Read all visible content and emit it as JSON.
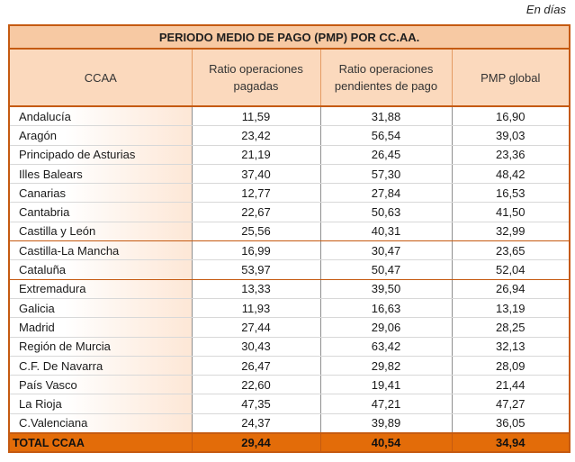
{
  "unit_note": "En días",
  "title": "PERIODO MEDIO DE PAGO (PMP) POR CC.AA.",
  "columns": {
    "ccaa": "CCAA",
    "ratio_pagadas": "Ratio operaciones pagadas",
    "ratio_pendientes": "Ratio operaciones pendientes de pago",
    "pmp_global": "PMP global"
  },
  "rows": [
    {
      "name": "Andalucía",
      "pagadas": "11,59",
      "pendientes": "31,88",
      "pmp": "16,90"
    },
    {
      "name": "Aragón",
      "pagadas": "23,42",
      "pendientes": "56,54",
      "pmp": "39,03"
    },
    {
      "name": "Principado de Asturias",
      "pagadas": "21,19",
      "pendientes": "26,45",
      "pmp": "23,36"
    },
    {
      "name": "Illes Balears",
      "pagadas": "37,40",
      "pendientes": "57,30",
      "pmp": "48,42"
    },
    {
      "name": "Canarias",
      "pagadas": "12,77",
      "pendientes": "27,84",
      "pmp": "16,53"
    },
    {
      "name": "Cantabria",
      "pagadas": "22,67",
      "pendientes": "50,63",
      "pmp": "41,50"
    },
    {
      "name": "Castilla y León",
      "pagadas": "25,56",
      "pendientes": "40,31",
      "pmp": "32,99"
    },
    {
      "name": "Castilla-La Mancha",
      "pagadas": "16,99",
      "pendientes": "30,47",
      "pmp": "23,65"
    },
    {
      "name": "Cataluña",
      "pagadas": "53,97",
      "pendientes": "50,47",
      "pmp": "52,04"
    },
    {
      "name": "Extremadura",
      "pagadas": "13,33",
      "pendientes": "39,50",
      "pmp": "26,94"
    },
    {
      "name": "Galicia",
      "pagadas": "11,93",
      "pendientes": "16,63",
      "pmp": "13,19"
    },
    {
      "name": "Madrid",
      "pagadas": "27,44",
      "pendientes": "29,06",
      "pmp": "28,25"
    },
    {
      "name": "Región de Murcia",
      "pagadas": "30,43",
      "pendientes": "63,42",
      "pmp": "32,13"
    },
    {
      "name": "C.F. De Navarra",
      "pagadas": "26,47",
      "pendientes": "29,82",
      "pmp": "28,09"
    },
    {
      "name": "País Vasco",
      "pagadas": "22,60",
      "pendientes": "19,41",
      "pmp": "21,44"
    },
    {
      "name": "La Rioja",
      "pagadas": "47,35",
      "pendientes": "47,21",
      "pmp": "47,27"
    },
    {
      "name": "C.Valenciana",
      "pagadas": "24,37",
      "pendientes": "39,89",
      "pmp": "36,05"
    }
  ],
  "total": {
    "name": "TOTAL CCAA",
    "pagadas": "29,44",
    "pendientes": "40,54",
    "pmp": "34,94"
  },
  "colors": {
    "header_fill": "#fbd9bd",
    "title_fill": "#f7c9a3",
    "border_accent": "#c55a11",
    "total_fill": "#e36c09"
  }
}
